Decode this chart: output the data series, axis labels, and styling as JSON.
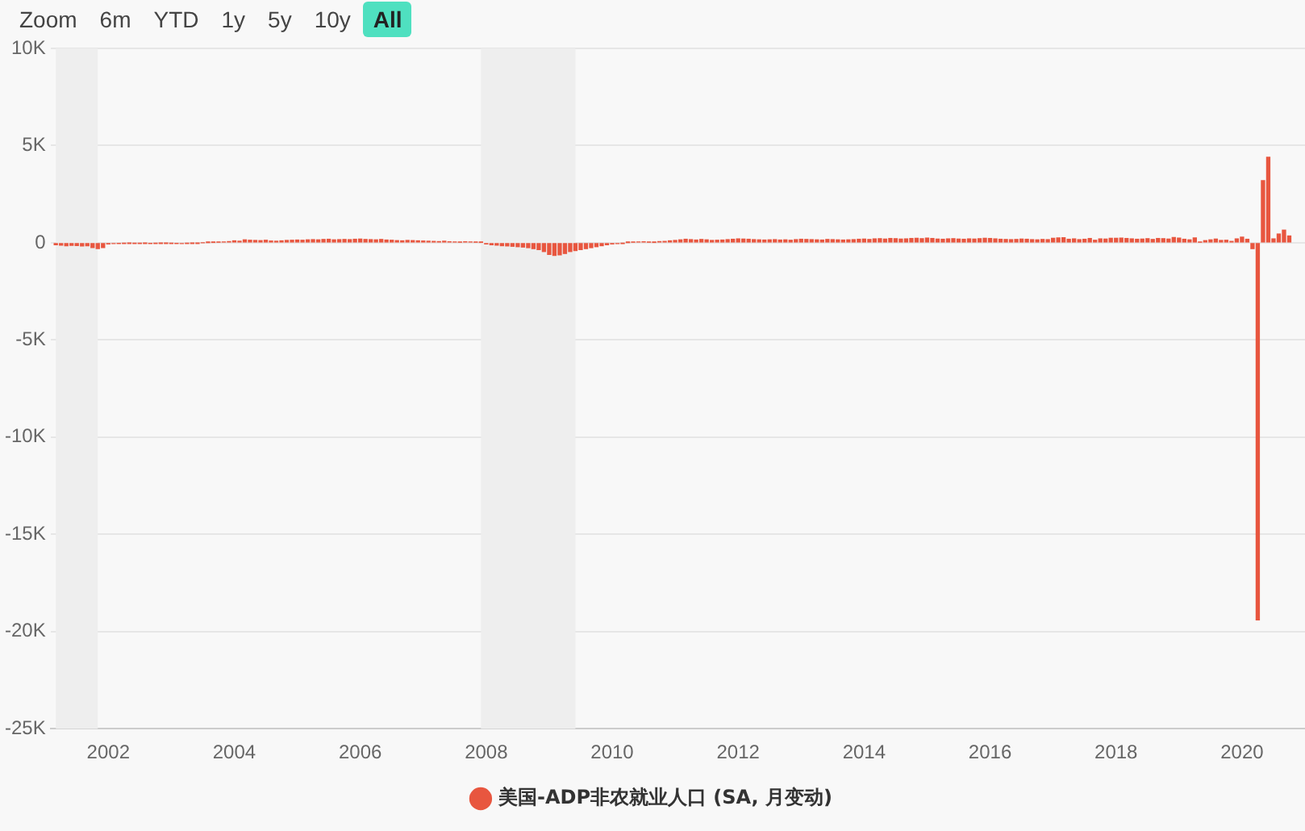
{
  "chart_data": {
    "type": "bar",
    "annotations": [
      "Zoom",
      "6m",
      "YTD",
      "1y",
      "5y",
      "10y",
      "All"
    ],
    "x": [
      "2001-03",
      "2001-04",
      "2001-05",
      "2001-06",
      "2001-07",
      "2001-08",
      "2001-09",
      "2001-10",
      "2001-11",
      "2001-12",
      "2002-01",
      "2002-02",
      "2002-03",
      "2002-04",
      "2002-05",
      "2002-06",
      "2002-07",
      "2002-08",
      "2002-09",
      "2002-10",
      "2002-11",
      "2002-12",
      "2003-01",
      "2003-02",
      "2003-03",
      "2003-04",
      "2003-05",
      "2003-06",
      "2003-07",
      "2003-08",
      "2003-09",
      "2003-10",
      "2003-11",
      "2003-12",
      "2004-01",
      "2004-02",
      "2004-03",
      "2004-04",
      "2004-05",
      "2004-06",
      "2004-07",
      "2004-08",
      "2004-09",
      "2004-10",
      "2004-11",
      "2004-12",
      "2005-01",
      "2005-02",
      "2005-03",
      "2005-04",
      "2005-05",
      "2005-06",
      "2005-07",
      "2005-08",
      "2005-09",
      "2005-10",
      "2005-11",
      "2005-12",
      "2006-01",
      "2006-02",
      "2006-03",
      "2006-04",
      "2006-05",
      "2006-06",
      "2006-07",
      "2006-08",
      "2006-09",
      "2006-10",
      "2006-11",
      "2006-12",
      "2007-01",
      "2007-02",
      "2007-03",
      "2007-04",
      "2007-05",
      "2007-06",
      "2007-07",
      "2007-08",
      "2007-09",
      "2007-10",
      "2007-11",
      "2007-12",
      "2008-01",
      "2008-02",
      "2008-03",
      "2008-04",
      "2008-05",
      "2008-06",
      "2008-07",
      "2008-08",
      "2008-09",
      "2008-10",
      "2008-11",
      "2008-12",
      "2009-01",
      "2009-02",
      "2009-03",
      "2009-04",
      "2009-05",
      "2009-06",
      "2009-07",
      "2009-08",
      "2009-09",
      "2009-10",
      "2009-11",
      "2009-12",
      "2010-01",
      "2010-02",
      "2010-03",
      "2010-04",
      "2010-05",
      "2010-06",
      "2010-07",
      "2010-08",
      "2010-09",
      "2010-10",
      "2010-11",
      "2010-12",
      "2011-01",
      "2011-02",
      "2011-03",
      "2011-04",
      "2011-05",
      "2011-06",
      "2011-07",
      "2011-08",
      "2011-09",
      "2011-10",
      "2011-11",
      "2011-12",
      "2012-01",
      "2012-02",
      "2012-03",
      "2012-04",
      "2012-05",
      "2012-06",
      "2012-07",
      "2012-08",
      "2012-09",
      "2012-10",
      "2012-11",
      "2012-12",
      "2013-01",
      "2013-02",
      "2013-03",
      "2013-04",
      "2013-05",
      "2013-06",
      "2013-07",
      "2013-08",
      "2013-09",
      "2013-10",
      "2013-11",
      "2013-12",
      "2014-01",
      "2014-02",
      "2014-03",
      "2014-04",
      "2014-05",
      "2014-06",
      "2014-07",
      "2014-08",
      "2014-09",
      "2014-10",
      "2014-11",
      "2014-12",
      "2015-01",
      "2015-02",
      "2015-03",
      "2015-04",
      "2015-05",
      "2015-06",
      "2015-07",
      "2015-08",
      "2015-09",
      "2015-10",
      "2015-11",
      "2015-12",
      "2016-01",
      "2016-02",
      "2016-03",
      "2016-04",
      "2016-05",
      "2016-06",
      "2016-07",
      "2016-08",
      "2016-09",
      "2016-10",
      "2016-11",
      "2016-12",
      "2017-01",
      "2017-02",
      "2017-03",
      "2017-04",
      "2017-05",
      "2017-06",
      "2017-07",
      "2017-08",
      "2017-09",
      "2017-10",
      "2017-11",
      "2017-12",
      "2018-01",
      "2018-02",
      "2018-03",
      "2018-04",
      "2018-05",
      "2018-06",
      "2018-07",
      "2018-08",
      "2018-09",
      "2018-10",
      "2018-11",
      "2018-12",
      "2019-01",
      "2019-02",
      "2019-03",
      "2019-04",
      "2019-05",
      "2019-06",
      "2019-07",
      "2019-08",
      "2019-09",
      "2019-10",
      "2019-11",
      "2019-12",
      "2020-01",
      "2020-02",
      "2020-03",
      "2020-04",
      "2020-05",
      "2020-06",
      "2020-07",
      "2020-08",
      "2020-09",
      "2020-10"
    ],
    "series": [
      {
        "name": "美国-ADP非农就业人口 (SA, 月变动)",
        "color": "#e8563f",
        "values": [
          -100,
          -120,
          -150,
          -130,
          -140,
          -160,
          -150,
          -250,
          -300,
          -250,
          -60,
          -40,
          -30,
          -20,
          -10,
          -20,
          -20,
          -10,
          -30,
          -20,
          -10,
          -10,
          -20,
          -30,
          -40,
          -20,
          -10,
          -10,
          0,
          10,
          20,
          30,
          40,
          60,
          100,
          80,
          150,
          130,
          120,
          110,
          130,
          90,
          80,
          100,
          120,
          130,
          140,
          130,
          150,
          160,
          150,
          170,
          180,
          150,
          160,
          170,
          160,
          180,
          190,
          170,
          160,
          150,
          170,
          140,
          130,
          110,
          100,
          120,
          110,
          100,
          90,
          80,
          70,
          60,
          80,
          50,
          40,
          30,
          50,
          40,
          30,
          20,
          -60,
          -100,
          -120,
          -150,
          -160,
          -180,
          -200,
          -220,
          -250,
          -300,
          -350,
          -450,
          -600,
          -650,
          -620,
          -550,
          -450,
          -400,
          -350,
          -300,
          -250,
          -200,
          -150,
          -100,
          -60,
          -40,
          -20,
          10,
          30,
          40,
          50,
          30,
          20,
          60,
          70,
          100,
          120,
          150,
          180,
          160,
          140,
          170,
          150,
          120,
          130,
          140,
          160,
          180,
          200,
          190,
          180,
          160,
          150,
          140,
          150,
          160,
          140,
          150,
          130,
          160,
          180,
          170,
          160,
          150,
          140,
          170,
          160,
          150,
          140,
          150,
          160,
          180,
          190,
          170,
          200,
          210,
          190,
          220,
          210,
          190,
          200,
          220,
          230,
          210,
          240,
          220,
          190,
          180,
          200,
          210,
          190,
          180,
          200,
          190,
          210,
          230,
          220,
          200,
          180,
          170,
          160,
          170,
          190,
          180,
          160,
          150,
          170,
          160,
          230,
          250,
          260,
          180,
          200,
          160,
          180,
          220,
          130,
          200,
          190,
          230,
          230,
          240,
          220,
          200,
          180,
          190,
          210,
          170,
          220,
          210,
          190,
          270,
          240,
          180,
          150,
          250,
          30,
          110,
          150,
          190,
          120,
          130,
          70,
          200,
          290,
          180,
          -300,
          -19400,
          3200,
          4400,
          200,
          450,
          650,
          350
        ]
      }
    ],
    "xlim": [
      "2001-02",
      "2021-01"
    ],
    "xticks": [
      "2002",
      "2004",
      "2006",
      "2008",
      "2010",
      "2012",
      "2014",
      "2016",
      "2018",
      "2020"
    ],
    "ylim": [
      -25000,
      10000
    ],
    "yticks": [
      {
        "value": -25000,
        "label": "-25K"
      },
      {
        "value": -20000,
        "label": "-20K"
      },
      {
        "value": -15000,
        "label": "-15K"
      },
      {
        "value": -10000,
        "label": "-10K"
      },
      {
        "value": -5000,
        "label": "-5K"
      },
      {
        "value": 0,
        "label": "0"
      },
      {
        "value": 5000,
        "label": "5K"
      },
      {
        "value": 10000,
        "label": "10K"
      }
    ],
    "bands": [
      {
        "axis": "x",
        "from": "2001-03",
        "to": "2001-11",
        "color": "#eeeeee"
      },
      {
        "axis": "x",
        "from": "2007-12",
        "to": "2009-06",
        "color": "#eeeeee"
      }
    ],
    "grid": "y",
    "legend": "bottom"
  }
}
